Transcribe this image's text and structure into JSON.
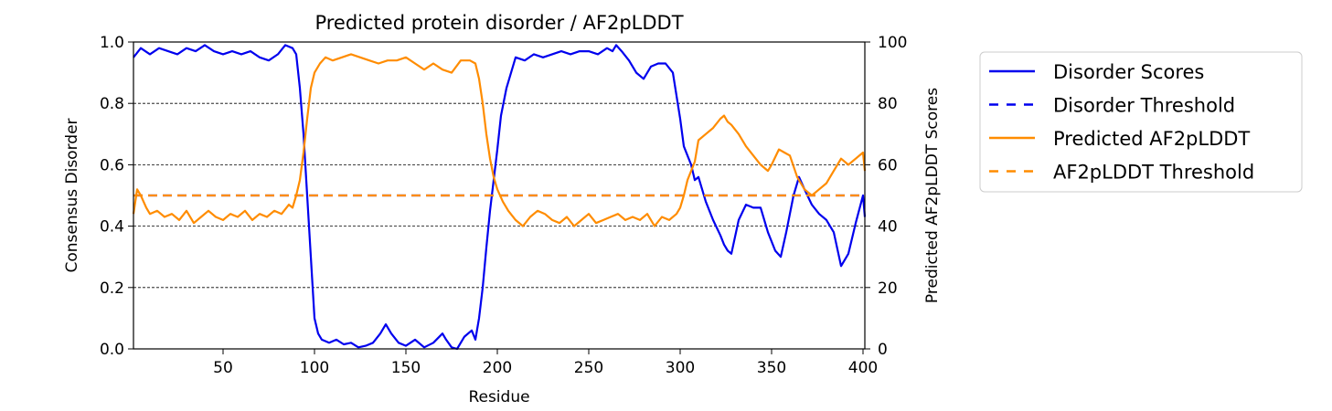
{
  "chart_data": {
    "type": "line",
    "title": "Predicted protein disorder / AF2pLDDT",
    "xlabel": "Residue",
    "ylabel_left": "Consensus Disorder",
    "ylabel_right": "Predicted AF2pLDDT Scores",
    "xlim": [
      1,
      401
    ],
    "ylim_left": [
      0,
      1
    ],
    "ylim_right": [
      0,
      100
    ],
    "xticks": [
      50,
      100,
      150,
      200,
      250,
      300,
      350,
      400
    ],
    "yticks_left": [
      "0.0",
      "0.2",
      "0.4",
      "0.6",
      "0.8",
      "1.0"
    ],
    "yticks_right": [
      "0",
      "20",
      "40",
      "60",
      "80",
      "100"
    ],
    "grid": "horizontal dashed",
    "legend_position": "outside-right",
    "colors": {
      "disorder": "#0000ee",
      "plddt": "#ff8c00"
    },
    "series": [
      {
        "name": "Disorder Scores",
        "axis": "left",
        "style": "solid",
        "x": [
          1,
          5,
          10,
          15,
          20,
          25,
          30,
          35,
          40,
          45,
          50,
          55,
          60,
          65,
          70,
          75,
          80,
          84,
          88,
          90,
          92,
          94,
          96,
          98,
          100,
          102,
          104,
          108,
          112,
          116,
          120,
          124,
          128,
          132,
          136,
          139,
          142,
          146,
          150,
          155,
          160,
          165,
          170,
          172,
          175,
          178,
          182,
          186,
          188,
          190,
          192,
          194,
          196,
          198,
          200,
          202,
          205,
          210,
          215,
          220,
          225,
          230,
          235,
          240,
          245,
          250,
          255,
          260,
          263,
          265,
          268,
          272,
          276,
          280,
          284,
          288,
          292,
          296,
          300,
          302,
          304,
          306,
          308,
          310,
          314,
          318,
          322,
          324,
          326,
          328,
          332,
          336,
          340,
          344,
          348,
          352,
          355,
          358,
          362,
          365,
          368,
          372,
          376,
          380,
          384,
          388,
          392,
          396,
          400,
          401
        ],
        "y": [
          0.95,
          0.98,
          0.96,
          0.98,
          0.97,
          0.96,
          0.98,
          0.97,
          0.99,
          0.97,
          0.96,
          0.97,
          0.96,
          0.97,
          0.95,
          0.94,
          0.96,
          0.99,
          0.98,
          0.96,
          0.85,
          0.7,
          0.5,
          0.3,
          0.1,
          0.05,
          0.03,
          0.02,
          0.03,
          0.015,
          0.02,
          0.005,
          0.01,
          0.02,
          0.05,
          0.08,
          0.05,
          0.02,
          0.01,
          0.03,
          0.005,
          0.02,
          0.05,
          0.03,
          0.005,
          0.0,
          0.04,
          0.06,
          0.03,
          0.1,
          0.2,
          0.33,
          0.45,
          0.55,
          0.65,
          0.76,
          0.85,
          0.95,
          0.94,
          0.96,
          0.95,
          0.96,
          0.97,
          0.96,
          0.97,
          0.97,
          0.96,
          0.98,
          0.97,
          0.99,
          0.97,
          0.94,
          0.9,
          0.88,
          0.92,
          0.93,
          0.93,
          0.9,
          0.75,
          0.66,
          0.63,
          0.6,
          0.55,
          0.56,
          0.48,
          0.42,
          0.37,
          0.34,
          0.32,
          0.31,
          0.42,
          0.47,
          0.46,
          0.46,
          0.38,
          0.32,
          0.3,
          0.38,
          0.5,
          0.56,
          0.52,
          0.47,
          0.44,
          0.42,
          0.38,
          0.27,
          0.31,
          0.41,
          0.5,
          0.43
        ]
      },
      {
        "name": "Disorder Threshold",
        "axis": "left",
        "style": "dashed",
        "x": [
          1,
          401
        ],
        "y": [
          0.5,
          0.5
        ]
      },
      {
        "name": "Predicted AF2pLDDT",
        "axis": "right",
        "style": "solid",
        "x": [
          1,
          3,
          5,
          8,
          10,
          14,
          18,
          22,
          26,
          30,
          34,
          38,
          42,
          46,
          50,
          54,
          58,
          62,
          66,
          70,
          74,
          78,
          82,
          86,
          88,
          90,
          92,
          94,
          96,
          98,
          100,
          103,
          106,
          110,
          115,
          120,
          125,
          130,
          135,
          140,
          145,
          150,
          155,
          160,
          165,
          170,
          175,
          180,
          185,
          188,
          190,
          192,
          194,
          196,
          198,
          200,
          203,
          206,
          210,
          214,
          218,
          222,
          226,
          230,
          234,
          238,
          242,
          246,
          250,
          254,
          258,
          262,
          266,
          270,
          274,
          278,
          282,
          286,
          290,
          294,
          298,
          300,
          302,
          304,
          306,
          308,
          310,
          314,
          318,
          322,
          324,
          326,
          328,
          332,
          336,
          340,
          344,
          348,
          350,
          354,
          357,
          360,
          364,
          368,
          372,
          376,
          380,
          384,
          388,
          392,
          396,
          400,
          401
        ],
        "y": [
          44,
          52,
          50,
          46,
          44,
          45,
          43,
          44,
          42,
          45,
          41,
          43,
          45,
          43,
          42,
          44,
          43,
          45,
          42,
          44,
          43,
          45,
          44,
          47,
          46,
          50,
          55,
          64,
          75,
          85,
          90,
          93,
          95,
          94,
          95,
          96,
          95,
          94,
          93,
          94,
          94,
          95,
          93,
          91,
          93,
          91,
          90,
          94,
          94,
          93,
          88,
          80,
          70,
          62,
          56,
          52,
          48,
          45,
          42,
          40,
          43,
          45,
          44,
          42,
          41,
          43,
          40,
          42,
          44,
          41,
          42,
          43,
          44,
          42,
          43,
          42,
          44,
          40,
          43,
          42,
          44,
          46,
          50,
          55,
          58,
          61,
          68,
          70,
          72,
          75,
          76,
          74,
          73,
          70,
          66,
          63,
          60,
          58,
          60,
          65,
          64,
          63,
          56,
          52,
          50,
          52,
          54,
          58,
          62,
          60,
          62,
          64,
          58
        ]
      },
      {
        "name": "AF2pLDDT Threshold",
        "axis": "right",
        "style": "dashed",
        "x": [
          1,
          401
        ],
        "y": [
          50,
          50
        ]
      }
    ]
  }
}
